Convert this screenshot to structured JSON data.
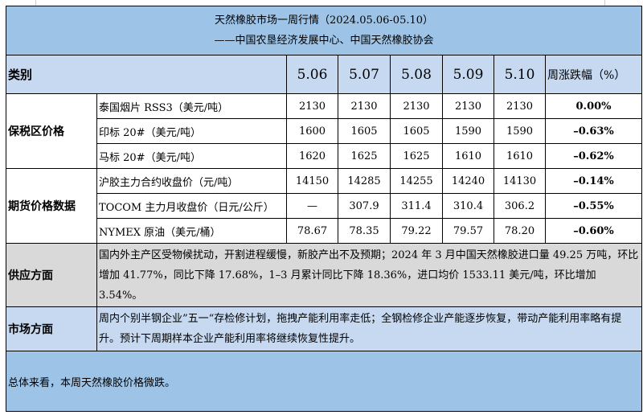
{
  "title": "天然橡胶市场一周行情（2024.05.06-05.10）",
  "subtitle": "——中国农垦经济发展中心、中国天然橡胶协会",
  "header": {
    "category": "类别",
    "dates": [
      "5.06",
      "5.07",
      "5.08",
      "5.09",
      "5.10"
    ],
    "change": "周涨跌幅（%）"
  },
  "groups": [
    {
      "name": "保税区价格",
      "rows": [
        {
          "item": "泰国烟片 RSS3（美元/吨）",
          "values": [
            "2130",
            "2130",
            "2130",
            "2130",
            "2130"
          ],
          "change": "0.00%"
        },
        {
          "item": "印标 20#（美元/吨）",
          "values": [
            "1600",
            "1605",
            "1605",
            "1590",
            "1590"
          ],
          "change": "–0.63%"
        },
        {
          "item": "马标 20#（美元/吨）",
          "values": [
            "1620",
            "1625",
            "1625",
            "1610",
            "1610"
          ],
          "change": "–0.62%"
        }
      ]
    },
    {
      "name": "期货价格数据",
      "rows": [
        {
          "item": "沪胶主力合约收盘价（元/吨）",
          "values": [
            "14150",
            "14285",
            "14255",
            "14240",
            "14130"
          ],
          "change": "–0.14%"
        },
        {
          "item": "TOCOM 主力月收盘价（日元/公斤）",
          "values": [
            "—",
            "307.9",
            "311.4",
            "310.4",
            "306.2"
          ],
          "change": "–0.55%"
        },
        {
          "item": "NYMEX 原油（美元/桶）",
          "values": [
            "78.67",
            "78.35",
            "79.22",
            "79.57",
            "78.20"
          ],
          "change": "–0.60%"
        }
      ]
    }
  ],
  "supply": {
    "label": "供应方面",
    "text": "国内外主产区受物候扰动，开割进程缓慢，新胶产出不及预期；2024 年 3 月中国天然橡胶进口量 49.25 万吨，环比增加 41.77%，同比下降 17.68%，1–3 月累计同比下降 18.36%，进口均价 1533.11 美元/吨，环比增加 3.54%。"
  },
  "market": {
    "label": "市场方面",
    "text": "周内个别半钢企业”五一“存检修计划，拖拽产能利用率走低；全钢检修企业产能逐步恢复，带动产能利用率略有提升。预计下周期样本企业产能利用率将继续恢复性提升。"
  },
  "summary": "总体来看，本周天然橡胶价格微跌。",
  "colors": {
    "title_bg": "#9dc3e6",
    "header_bg": "#c6d9f0",
    "supply_bg": "#d9d9d9"
  }
}
